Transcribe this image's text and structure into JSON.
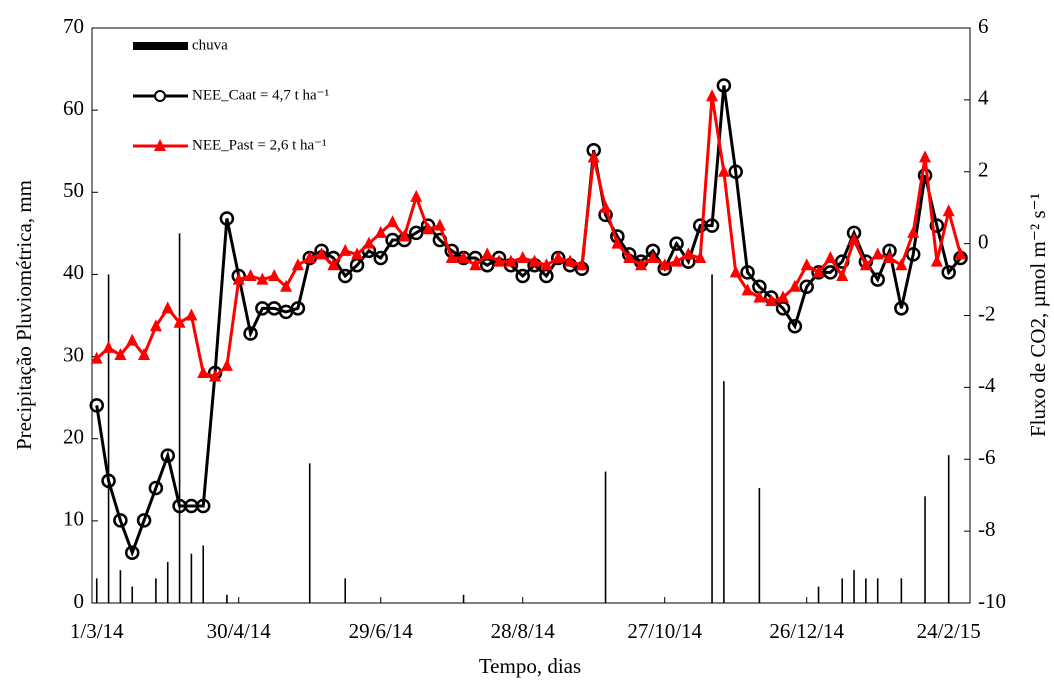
{
  "chart_data": {
    "type": "line",
    "x_label": "Tempo, dias",
    "y_label": "Precipitação Pluviométrica, mm",
    "y2_label": "Fluxo de CO2, µmol m⁻² s⁻¹",
    "x": [
      "2014-03-01",
      "2014-03-06",
      "2014-03-11",
      "2014-03-16",
      "2014-03-21",
      "2014-03-26",
      "2014-03-31",
      "2014-04-05",
      "2014-04-10",
      "2014-04-15",
      "2014-04-20",
      "2014-04-25",
      "2014-04-30",
      "2014-05-05",
      "2014-05-10",
      "2014-05-15",
      "2014-05-20",
      "2014-05-25",
      "2014-05-30",
      "2014-06-04",
      "2014-06-09",
      "2014-06-14",
      "2014-06-19",
      "2014-06-24",
      "2014-06-29",
      "2014-07-04",
      "2014-07-09",
      "2014-07-14",
      "2014-07-19",
      "2014-07-24",
      "2014-07-29",
      "2014-08-03",
      "2014-08-08",
      "2014-08-13",
      "2014-08-18",
      "2014-08-23",
      "2014-08-28",
      "2014-09-02",
      "2014-09-07",
      "2014-09-12",
      "2014-09-17",
      "2014-09-22",
      "2014-09-27",
      "2014-10-02",
      "2014-10-07",
      "2014-10-12",
      "2014-10-17",
      "2014-10-22",
      "2014-10-27",
      "2014-11-01",
      "2014-11-06",
      "2014-11-11",
      "2014-11-16",
      "2014-11-21",
      "2014-11-26",
      "2014-12-01",
      "2014-12-06",
      "2014-12-11",
      "2014-12-16",
      "2014-12-21",
      "2014-12-26",
      "2014-12-31",
      "2015-01-05",
      "2015-01-10",
      "2015-01-15",
      "2015-01-20",
      "2015-01-25",
      "2015-01-30",
      "2015-02-04",
      "2015-02-09",
      "2015-02-14",
      "2015-02-19",
      "2015-02-24",
      "2015-03-01"
    ],
    "series": [
      {
        "name": "chuva",
        "kind": "bar",
        "color": "#000000",
        "axis": "y",
        "values": [
          3,
          40,
          4,
          2,
          0,
          3,
          5,
          45,
          6,
          7,
          0,
          1,
          0,
          0,
          0,
          0,
          0,
          0,
          17,
          0,
          0,
          3,
          0,
          0,
          0,
          0,
          0,
          0,
          0,
          0,
          0,
          1,
          0,
          0,
          0,
          0,
          0,
          0,
          0,
          0,
          0,
          0,
          0,
          16,
          0,
          0,
          0,
          0,
          0,
          0,
          0,
          0,
          40,
          27,
          0,
          0,
          14,
          0,
          0,
          0,
          0,
          2,
          0,
          3,
          4,
          3,
          3,
          0,
          3,
          0,
          13,
          0,
          18,
          0
        ]
      },
      {
        "name": "NEE_Caat  = 4,7 t ha⁻¹",
        "kind": "line",
        "marker": "circle",
        "color": "#000000",
        "axis": "y2",
        "values": [
          -4.5,
          -6.6,
          -7.7,
          -8.6,
          -7.7,
          -6.8,
          -5.9,
          -7.3,
          -7.3,
          -7.3,
          -3.6,
          0.7,
          -0.9,
          -2.5,
          -1.8,
          -1.8,
          -1.9,
          -1.8,
          -0.4,
          -0.2,
          -0.4,
          -0.9,
          -0.6,
          -0.2,
          -0.4,
          0.1,
          0.1,
          0.3,
          0.5,
          0.1,
          -0.2,
          -0.4,
          -0.4,
          -0.6,
          -0.4,
          -0.6,
          -0.9,
          -0.6,
          -0.9,
          -0.4,
          -0.6,
          -0.7,
          2.6,
          0.8,
          0.2,
          -0.3,
          -0.5,
          -0.2,
          -0.7,
          0.0,
          -0.5,
          0.5,
          0.5,
          4.4,
          2.0,
          -0.8,
          -1.2,
          -1.5,
          -1.8,
          -2.3,
          -1.2,
          -0.8,
          -0.8,
          -0.5,
          0.3,
          -0.5,
          -1.0,
          -0.2,
          -1.8,
          -0.3,
          1.9,
          0.5,
          -0.8,
          -0.4
        ]
      },
      {
        "name": "NEE_Past  = 2,6 t ha⁻¹",
        "kind": "line",
        "marker": "triangle",
        "color": "#ff0000",
        "axis": "y2",
        "values": [
          -3.2,
          -2.9,
          -3.1,
          -2.7,
          -3.1,
          -2.3,
          -1.8,
          -2.2,
          -2.0,
          -3.6,
          -3.7,
          -3.4,
          -1.0,
          -0.9,
          -1.0,
          -0.9,
          -1.2,
          -0.6,
          -0.4,
          -0.3,
          -0.6,
          -0.2,
          -0.3,
          0.0,
          0.3,
          0.6,
          0.2,
          1.3,
          0.4,
          0.5,
          -0.4,
          -0.4,
          -0.6,
          -0.3,
          -0.5,
          -0.5,
          -0.4,
          -0.5,
          -0.6,
          -0.4,
          -0.5,
          -0.6,
          2.4,
          1.0,
          0.0,
          -0.4,
          -0.6,
          -0.4,
          -0.6,
          -0.5,
          -0.3,
          -0.4,
          4.1,
          2.0,
          -0.8,
          -1.3,
          -1.5,
          -1.6,
          -1.5,
          -1.2,
          -0.6,
          -0.8,
          -0.4,
          -0.9,
          0.1,
          -0.6,
          -0.3,
          -0.4,
          -0.6,
          0.3,
          2.4,
          -0.5,
          0.9,
          -0.3
        ]
      }
    ],
    "xlim": [
      "2014-02-27",
      "2015-03-05"
    ],
    "xticks": [
      {
        "value": "2014-03-01",
        "label": "1/3/14"
      },
      {
        "value": "2014-04-30",
        "label": "30/4/14"
      },
      {
        "value": "2014-06-29",
        "label": "29/6/14"
      },
      {
        "value": "2014-08-28",
        "label": "28/8/14"
      },
      {
        "value": "2014-10-27",
        "label": "27/10/14"
      },
      {
        "value": "2014-12-26",
        "label": "26/12/14"
      },
      {
        "value": "2015-02-24",
        "label": "24/2/15"
      }
    ],
    "ylim": [
      0,
      70
    ],
    "yticks": [
      0,
      10,
      20,
      30,
      40,
      50,
      60,
      70
    ],
    "y2lim": [
      -10,
      6
    ],
    "y2ticks": [
      -10,
      -8,
      -6,
      -4,
      -2,
      0,
      2,
      4,
      6
    ]
  }
}
